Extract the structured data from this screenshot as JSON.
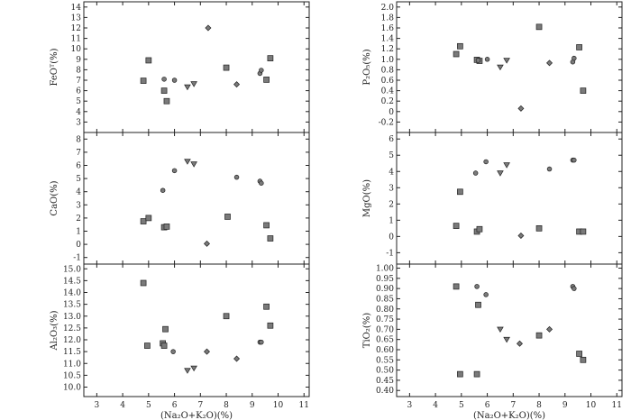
{
  "chart_data": [
    {
      "id": "feo",
      "type": "scatter",
      "ylabel": "FeOᵀ(%)",
      "xlabel": "",
      "xlim": [
        2.5,
        11.2
      ],
      "ylim": [
        2,
        14.5
      ],
      "yticks": [
        3,
        4,
        5,
        6,
        7,
        8,
        9,
        10,
        11,
        12,
        13,
        14
      ],
      "series": [
        {
          "marker": "square",
          "points": [
            [
              4.8,
              6.95
            ],
            [
              5.0,
              8.9
            ],
            [
              5.6,
              6.0
            ],
            [
              5.7,
              5.0
            ],
            [
              8.0,
              8.2
            ],
            [
              9.55,
              7.05
            ],
            [
              9.7,
              9.1
            ]
          ]
        },
        {
          "marker": "circle",
          "points": [
            [
              5.6,
              7.1
            ],
            [
              6.0,
              7.0
            ],
            [
              9.3,
              7.65
            ],
            [
              9.35,
              7.95
            ]
          ]
        },
        {
          "marker": "diamond",
          "points": [
            [
              7.3,
              12.0
            ],
            [
              8.4,
              6.6
            ]
          ]
        },
        {
          "marker": "triangle",
          "points": [
            [
              6.5,
              6.35
            ],
            [
              6.75,
              6.65
            ]
          ]
        }
      ]
    },
    {
      "id": "p2o5",
      "type": "scatter",
      "ylabel": "P₂O₅(%)",
      "xlabel": "",
      "xlim": [
        2.5,
        11.2
      ],
      "ylim": [
        -0.4,
        2.1
      ],
      "yticks": [
        -0.2,
        0,
        0.2,
        0.4,
        0.6,
        0.8,
        1.0,
        1.2,
        1.4,
        1.6,
        1.8,
        2.0
      ],
      "yticklabels": [
        "-0.2",
        "0",
        "0.2",
        "0.4",
        "0.6",
        "0.8",
        "1.0",
        "1.2",
        "1.4",
        "1.6",
        "1.8",
        "2.0"
      ],
      "series": [
        {
          "marker": "square",
          "points": [
            [
              4.8,
              1.1
            ],
            [
              4.95,
              1.25
            ],
            [
              5.6,
              0.99
            ],
            [
              5.7,
              0.97
            ],
            [
              8.0,
              1.62
            ],
            [
              9.55,
              1.23
            ],
            [
              9.7,
              0.4
            ]
          ]
        },
        {
          "marker": "circle",
          "points": [
            [
              5.65,
              0.98
            ],
            [
              6.0,
              1.0
            ],
            [
              9.3,
              0.95
            ],
            [
              9.35,
              1.02
            ]
          ]
        },
        {
          "marker": "diamond",
          "points": [
            [
              7.3,
              0.06
            ],
            [
              8.4,
              0.93
            ]
          ]
        },
        {
          "marker": "triangle",
          "points": [
            [
              6.5,
              0.85
            ],
            [
              6.75,
              0.98
            ]
          ]
        }
      ]
    },
    {
      "id": "cao",
      "type": "scatter",
      "ylabel": "CaO(%)",
      "xlabel": "",
      "xlim": [
        2.5,
        11.2
      ],
      "ylim": [
        -1.5,
        8.5
      ],
      "yticks": [
        -1,
        0,
        1,
        2,
        3,
        4,
        5,
        6,
        7,
        8
      ],
      "series": [
        {
          "marker": "square",
          "points": [
            [
              4.8,
              1.75
            ],
            [
              5.0,
              2.0
            ],
            [
              5.6,
              1.3
            ],
            [
              5.7,
              1.35
            ],
            [
              8.05,
              2.1
            ],
            [
              9.55,
              1.45
            ],
            [
              9.7,
              0.45
            ]
          ]
        },
        {
          "marker": "circle",
          "points": [
            [
              5.55,
              4.1
            ],
            [
              6.0,
              5.6
            ],
            [
              8.4,
              5.1
            ],
            [
              9.3,
              4.8
            ],
            [
              9.35,
              4.65
            ]
          ]
        },
        {
          "marker": "diamond",
          "points": [
            [
              7.25,
              0.05
            ]
          ]
        },
        {
          "marker": "triangle",
          "points": [
            [
              6.5,
              6.3
            ],
            [
              6.75,
              6.1
            ]
          ]
        }
      ]
    },
    {
      "id": "mgo",
      "type": "scatter",
      "ylabel": "MgO(%)",
      "xlabel": "",
      "xlim": [
        2.5,
        11.2
      ],
      "ylim": [
        -1.7,
        6.4
      ],
      "yticks": [
        -1,
        0,
        1,
        2,
        3,
        4,
        5,
        6
      ],
      "series": [
        {
          "marker": "square",
          "points": [
            [
              4.8,
              0.65
            ],
            [
              4.95,
              2.75
            ],
            [
              5.6,
              0.3
            ],
            [
              5.7,
              0.45
            ],
            [
              8.0,
              0.5
            ],
            [
              9.55,
              0.3
            ],
            [
              9.7,
              0.3
            ]
          ]
        },
        {
          "marker": "circle",
          "points": [
            [
              5.55,
              3.9
            ],
            [
              5.95,
              4.6
            ],
            [
              8.4,
              4.15
            ],
            [
              9.3,
              4.7
            ],
            [
              9.35,
              4.7
            ]
          ]
        },
        {
          "marker": "diamond",
          "points": [
            [
              7.3,
              0.05
            ]
          ]
        },
        {
          "marker": "triangle",
          "points": [
            [
              6.5,
              3.9
            ],
            [
              6.75,
              4.4
            ]
          ]
        }
      ]
    },
    {
      "id": "al2o3",
      "type": "scatter",
      "ylabel": "Al₂O₃(%)",
      "xlabel": "(Na₂O+K₂O)(%)",
      "xlim": [
        2.5,
        11.2
      ],
      "ylim": [
        9.6,
        15.2
      ],
      "yticks": [
        10.0,
        10.5,
        11.0,
        11.5,
        12.0,
        12.5,
        13.0,
        13.5,
        14.0,
        14.5,
        15.0
      ],
      "yticklabels": [
        "10.0",
        "10.5",
        "11.0",
        "11.5",
        "12.0",
        "12.5",
        "13.0",
        "13.5",
        "14.0",
        "14.5",
        "15.0"
      ],
      "xticks": [
        3,
        4,
        5,
        6,
        7,
        8,
        9,
        10,
        11
      ],
      "series": [
        {
          "marker": "square",
          "points": [
            [
              4.8,
              14.4
            ],
            [
              4.95,
              11.75
            ],
            [
              5.55,
              11.85
            ],
            [
              5.6,
              11.75
            ],
            [
              5.65,
              12.45
            ],
            [
              8.0,
              13.0
            ],
            [
              9.55,
              13.4
            ],
            [
              9.7,
              12.6
            ]
          ]
        },
        {
          "marker": "circle",
          "points": [
            [
              5.95,
              11.5
            ],
            [
              9.3,
              11.9
            ],
            [
              9.35,
              11.9
            ]
          ]
        },
        {
          "marker": "diamond",
          "points": [
            [
              7.25,
              11.5
            ],
            [
              8.4,
              11.2
            ]
          ]
        },
        {
          "marker": "triangle",
          "points": [
            [
              6.5,
              10.7
            ],
            [
              6.75,
              10.8
            ]
          ]
        }
      ]
    },
    {
      "id": "tio2",
      "type": "scatter",
      "ylabel": "TiO₂(%)",
      "xlabel": "(Na₂O+K₂O)(%)",
      "xlim": [
        2.5,
        11.2
      ],
      "ylim": [
        0.37,
        1.02
      ],
      "yticks": [
        0.4,
        0.45,
        0.5,
        0.55,
        0.6,
        0.65,
        0.7,
        0.75,
        0.8,
        0.85,
        0.9,
        0.95,
        1.0
      ],
      "yticklabels": [
        "0.40",
        "0.45",
        "0.50",
        "0.55",
        "0.60",
        "0.65",
        "0.70",
        "0.75",
        "0.80",
        "0.85",
        "0.90",
        "0.95",
        "1.00"
      ],
      "xticks": [
        3,
        4,
        5,
        6,
        7,
        8,
        9,
        10,
        11
      ],
      "series": [
        {
          "marker": "square",
          "points": [
            [
              4.8,
              0.91
            ],
            [
              4.95,
              0.48
            ],
            [
              5.6,
              0.48
            ],
            [
              5.65,
              0.82
            ],
            [
              8.0,
              0.67
            ],
            [
              9.55,
              0.58
            ],
            [
              9.7,
              0.55
            ]
          ]
        },
        {
          "marker": "circle",
          "points": [
            [
              5.6,
              0.91
            ],
            [
              5.95,
              0.87
            ],
            [
              9.3,
              0.91
            ],
            [
              9.35,
              0.9
            ]
          ]
        },
        {
          "marker": "diamond",
          "points": [
            [
              7.25,
              0.63
            ],
            [
              8.4,
              0.7
            ]
          ]
        },
        {
          "marker": "triangle",
          "points": [
            [
              6.5,
              0.7
            ],
            [
              6.75,
              0.65
            ]
          ]
        }
      ]
    }
  ]
}
